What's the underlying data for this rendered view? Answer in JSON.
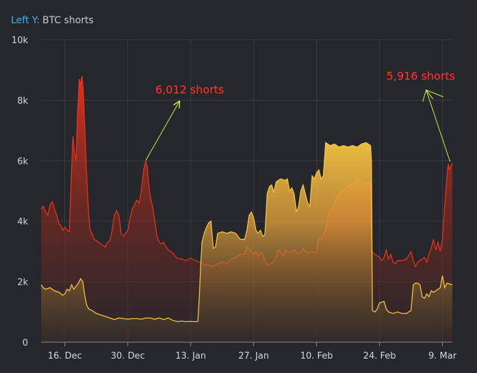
{
  "chart_data": {
    "type": "area",
    "legend_prefix": "Left Y:",
    "legend_label": "BTC shorts",
    "colors": {
      "background": "#25272c",
      "grid": "#3a3d44",
      "axis_text": "#d6d8dc",
      "legend_prefix": "#3fb3e6",
      "legend_label": "#c9ccd2",
      "red_series": "#e8331c",
      "yellow_series": "#f4c542",
      "annotation_text": "#ff3b30",
      "annotation_arrow": "#d7f24a"
    },
    "ylim": [
      0,
      10000
    ],
    "y_ticks": [
      {
        "value": 0,
        "label": "0"
      },
      {
        "value": 2000,
        "label": "2k"
      },
      {
        "value": 4000,
        "label": "4k"
      },
      {
        "value": 6000,
        "label": "6k"
      },
      {
        "value": 8000,
        "label": "8k"
      },
      {
        "value": 10000,
        "label": "10k"
      }
    ],
    "xlim": [
      -5.3,
      86.2
    ],
    "x_ticks": [
      {
        "day": 0,
        "label": "16. Dec"
      },
      {
        "day": 14,
        "label": "30. Dec"
      },
      {
        "day": 28,
        "label": "13. Jan"
      },
      {
        "day": 42,
        "label": "27. Jan"
      },
      {
        "day": 56,
        "label": "10. Feb"
      },
      {
        "day": 70,
        "label": "24. Feb"
      },
      {
        "day": 84,
        "label": "9. Mar"
      }
    ],
    "series": [
      {
        "style": "red",
        "points": [
          [
            -5.3,
            4400
          ],
          [
            -4.8,
            4500
          ],
          [
            -4.3,
            4300
          ],
          [
            -3.8,
            4200
          ],
          [
            -3.3,
            4550
          ],
          [
            -2.8,
            4650
          ],
          [
            -2.3,
            4400
          ],
          [
            -1.8,
            4200
          ],
          [
            -1.3,
            3900
          ],
          [
            -0.8,
            3850
          ],
          [
            -0.5,
            3700
          ],
          [
            0,
            3800
          ],
          [
            0.5,
            3700
          ],
          [
            1,
            3650
          ],
          [
            1.5,
            5800
          ],
          [
            1.8,
            6800
          ],
          [
            2.2,
            6200
          ],
          [
            2.5,
            6000
          ],
          [
            2.8,
            7500
          ],
          [
            3.2,
            8700
          ],
          [
            3.5,
            8500
          ],
          [
            3.8,
            8800
          ],
          [
            4.1,
            8300
          ],
          [
            4.4,
            7200
          ],
          [
            4.7,
            6000
          ],
          [
            5,
            5000
          ],
          [
            5.3,
            4200
          ],
          [
            5.6,
            3700
          ],
          [
            6,
            3600
          ],
          [
            6.5,
            3400
          ],
          [
            7,
            3350
          ],
          [
            7.5,
            3300
          ],
          [
            8,
            3250
          ],
          [
            8.5,
            3200
          ],
          [
            9,
            3150
          ],
          [
            9.5,
            3300
          ],
          [
            10,
            3350
          ],
          [
            10.5,
            3700
          ],
          [
            11,
            4200
          ],
          [
            11.5,
            4350
          ],
          [
            12,
            4200
          ],
          [
            12.5,
            3600
          ],
          [
            13,
            3500
          ],
          [
            13.5,
            3600
          ],
          [
            14,
            3700
          ],
          [
            14.5,
            4100
          ],
          [
            15,
            4400
          ],
          [
            15.5,
            4550
          ],
          [
            16,
            4700
          ],
          [
            16.5,
            4600
          ],
          [
            17,
            5000
          ],
          [
            17.5,
            5700
          ],
          [
            18,
            6000
          ],
          [
            18.3,
            5800
          ],
          [
            18.6,
            5300
          ],
          [
            19,
            4800
          ],
          [
            19.5,
            4500
          ],
          [
            20,
            4000
          ],
          [
            20.5,
            3500
          ],
          [
            21,
            3300
          ],
          [
            21.5,
            3250
          ],
          [
            22,
            3300
          ],
          [
            22.5,
            3150
          ],
          [
            23,
            3050
          ],
          [
            23.5,
            3000
          ],
          [
            24,
            2950
          ],
          [
            24.5,
            2850
          ],
          [
            25,
            2780
          ],
          [
            26,
            2750
          ],
          [
            27,
            2700
          ],
          [
            28,
            2780
          ],
          [
            29,
            2700
          ],
          [
            30,
            2650
          ],
          [
            30.5,
            2600
          ],
          [
            31,
            2550
          ],
          [
            32,
            2550
          ],
          [
            33,
            2500
          ],
          [
            34,
            2600
          ],
          [
            35,
            2650
          ],
          [
            36,
            2600
          ],
          [
            37,
            2750
          ],
          [
            38,
            2800
          ],
          [
            39,
            2900
          ],
          [
            40,
            2900
          ],
          [
            40.5,
            3150
          ],
          [
            41,
            3100
          ],
          [
            42,
            2900
          ],
          [
            42.5,
            3000
          ],
          [
            43,
            2850
          ],
          [
            43.5,
            2950
          ],
          [
            44,
            2900
          ],
          [
            44.5,
            2700
          ],
          [
            45,
            2550
          ],
          [
            46,
            2600
          ],
          [
            47,
            2800
          ],
          [
            47.5,
            3050
          ],
          [
            48,
            3000
          ],
          [
            48.5,
            2850
          ],
          [
            49,
            3050
          ],
          [
            50,
            2950
          ],
          [
            51,
            3050
          ],
          [
            52,
            2900
          ],
          [
            53,
            3100
          ],
          [
            54,
            2950
          ],
          [
            55,
            3000
          ],
          [
            56,
            2950
          ],
          [
            56.5,
            3450
          ],
          [
            57,
            3400
          ],
          [
            58,
            3700
          ],
          [
            58.5,
            4100
          ],
          [
            59,
            4400
          ],
          [
            59.5,
            4350
          ],
          [
            60,
            4600
          ],
          [
            60.5,
            4800
          ],
          [
            61,
            4900
          ],
          [
            62,
            5050
          ],
          [
            63,
            5150
          ],
          [
            64,
            5200
          ],
          [
            64.5,
            5300
          ],
          [
            65,
            5400
          ],
          [
            66,
            5350
          ],
          [
            67,
            5200
          ],
          [
            67.5,
            5300
          ],
          [
            68,
            5300
          ],
          [
            68.3,
            3000
          ],
          [
            69,
            2900
          ],
          [
            70,
            2800
          ],
          [
            70.5,
            2700
          ],
          [
            71,
            2800
          ],
          [
            71.5,
            3050
          ],
          [
            72,
            2750
          ],
          [
            72.5,
            2900
          ],
          [
            73,
            2650
          ],
          [
            73.5,
            2600
          ],
          [
            74,
            2700
          ],
          [
            75,
            2700
          ],
          [
            76,
            2750
          ],
          [
            77,
            3000
          ],
          [
            77.5,
            2700
          ],
          [
            78,
            2500
          ],
          [
            78.5,
            2650
          ],
          [
            79,
            2700
          ],
          [
            80,
            2800
          ],
          [
            80.5,
            2650
          ],
          [
            81,
            2900
          ],
          [
            81.5,
            3100
          ],
          [
            82,
            3400
          ],
          [
            82.5,
            3050
          ],
          [
            83,
            3300
          ],
          [
            83.5,
            3000
          ],
          [
            84,
            3400
          ],
          [
            84.5,
            4500
          ],
          [
            85,
            5500
          ],
          [
            85.3,
            5900
          ],
          [
            85.5,
            5700
          ],
          [
            86.2,
            5916
          ]
        ]
      },
      {
        "style": "yellow",
        "points": [
          [
            -5.3,
            1900
          ],
          [
            -4.8,
            1800
          ],
          [
            -4.3,
            1750
          ],
          [
            -3.3,
            1800
          ],
          [
            -2.3,
            1700
          ],
          [
            -1.3,
            1650
          ],
          [
            -0.5,
            1550
          ],
          [
            0,
            1600
          ],
          [
            0.5,
            1750
          ],
          [
            1,
            1700
          ],
          [
            1.5,
            1900
          ],
          [
            2,
            1750
          ],
          [
            2.5,
            1850
          ],
          [
            3,
            1950
          ],
          [
            3.5,
            2100
          ],
          [
            4,
            2000
          ],
          [
            4.3,
            1650
          ],
          [
            4.8,
            1250
          ],
          [
            5.3,
            1100
          ],
          [
            6,
            1050
          ],
          [
            7,
            950
          ],
          [
            8,
            900
          ],
          [
            9,
            850
          ],
          [
            10,
            800
          ],
          [
            11,
            750
          ],
          [
            12,
            800
          ],
          [
            13,
            780
          ],
          [
            14,
            760
          ],
          [
            15,
            780
          ],
          [
            16,
            780
          ],
          [
            17,
            760
          ],
          [
            18,
            800
          ],
          [
            19,
            800
          ],
          [
            20,
            760
          ],
          [
            21,
            800
          ],
          [
            22,
            750
          ],
          [
            23,
            800
          ],
          [
            24,
            720
          ],
          [
            25,
            680
          ],
          [
            26,
            700
          ],
          [
            27,
            680
          ],
          [
            28,
            690
          ],
          [
            29,
            680
          ],
          [
            29.6,
            690
          ],
          [
            29.9,
            1500
          ],
          [
            30.2,
            2500
          ],
          [
            30.5,
            3300
          ],
          [
            31,
            3600
          ],
          [
            31.5,
            3800
          ],
          [
            32,
            3950
          ],
          [
            32.5,
            4000
          ],
          [
            33,
            3100
          ],
          [
            33.5,
            3150
          ],
          [
            34,
            3600
          ],
          [
            35,
            3650
          ],
          [
            36,
            3600
          ],
          [
            37,
            3650
          ],
          [
            38,
            3600
          ],
          [
            39,
            3400
          ],
          [
            40,
            3400
          ],
          [
            40.5,
            3700
          ],
          [
            41,
            4200
          ],
          [
            41.5,
            4300
          ],
          [
            42,
            4100
          ],
          [
            42.5,
            3700
          ],
          [
            43,
            3600
          ],
          [
            43.5,
            3700
          ],
          [
            44,
            3500
          ],
          [
            44.5,
            3550
          ],
          [
            45,
            4900
          ],
          [
            45.5,
            5150
          ],
          [
            46,
            5200
          ],
          [
            46.5,
            4950
          ],
          [
            47,
            5300
          ],
          [
            48,
            5400
          ],
          [
            49,
            5350
          ],
          [
            49.5,
            5400
          ],
          [
            50,
            5000
          ],
          [
            50.5,
            5100
          ],
          [
            51,
            4900
          ],
          [
            51.5,
            4300
          ],
          [
            52,
            4500
          ],
          [
            52.5,
            5000
          ],
          [
            53,
            5200
          ],
          [
            54,
            4600
          ],
          [
            54.5,
            4500
          ],
          [
            55,
            5500
          ],
          [
            55.5,
            5400
          ],
          [
            56,
            5600
          ],
          [
            56.5,
            5700
          ],
          [
            57,
            5400
          ],
          [
            57.5,
            5500
          ],
          [
            58,
            6600
          ],
          [
            59,
            6500
          ],
          [
            60,
            6550
          ],
          [
            61,
            6450
          ],
          [
            62,
            6500
          ],
          [
            63,
            6450
          ],
          [
            64,
            6500
          ],
          [
            65,
            6450
          ],
          [
            66,
            6550
          ],
          [
            67,
            6600
          ],
          [
            68,
            6500
          ],
          [
            68.2,
            6000
          ],
          [
            68.4,
            1050
          ],
          [
            69,
            1000
          ],
          [
            69.5,
            1100
          ],
          [
            70,
            1300
          ],
          [
            71,
            1350
          ],
          [
            71.5,
            1100
          ],
          [
            72,
            1000
          ],
          [
            73,
            950
          ],
          [
            74,
            1000
          ],
          [
            75,
            950
          ],
          [
            76,
            950
          ],
          [
            77,
            1050
          ],
          [
            77.5,
            1900
          ],
          [
            78,
            1950
          ],
          [
            78.5,
            1950
          ],
          [
            79,
            1900
          ],
          [
            79.5,
            1500
          ],
          [
            80,
            1450
          ],
          [
            80.5,
            1600
          ],
          [
            81,
            1500
          ],
          [
            81.5,
            1700
          ],
          [
            82,
            1650
          ],
          [
            83,
            1750
          ],
          [
            83.5,
            1800
          ],
          [
            84,
            2200
          ],
          [
            84.5,
            1800
          ],
          [
            85,
            1950
          ],
          [
            86.2,
            1900
          ]
        ]
      }
    ],
    "annotations": [
      {
        "text": "6,012 shorts",
        "day": 18,
        "value": 6012
      },
      {
        "text": "5,916 shorts",
        "day": 86,
        "value": 5916
      }
    ]
  }
}
